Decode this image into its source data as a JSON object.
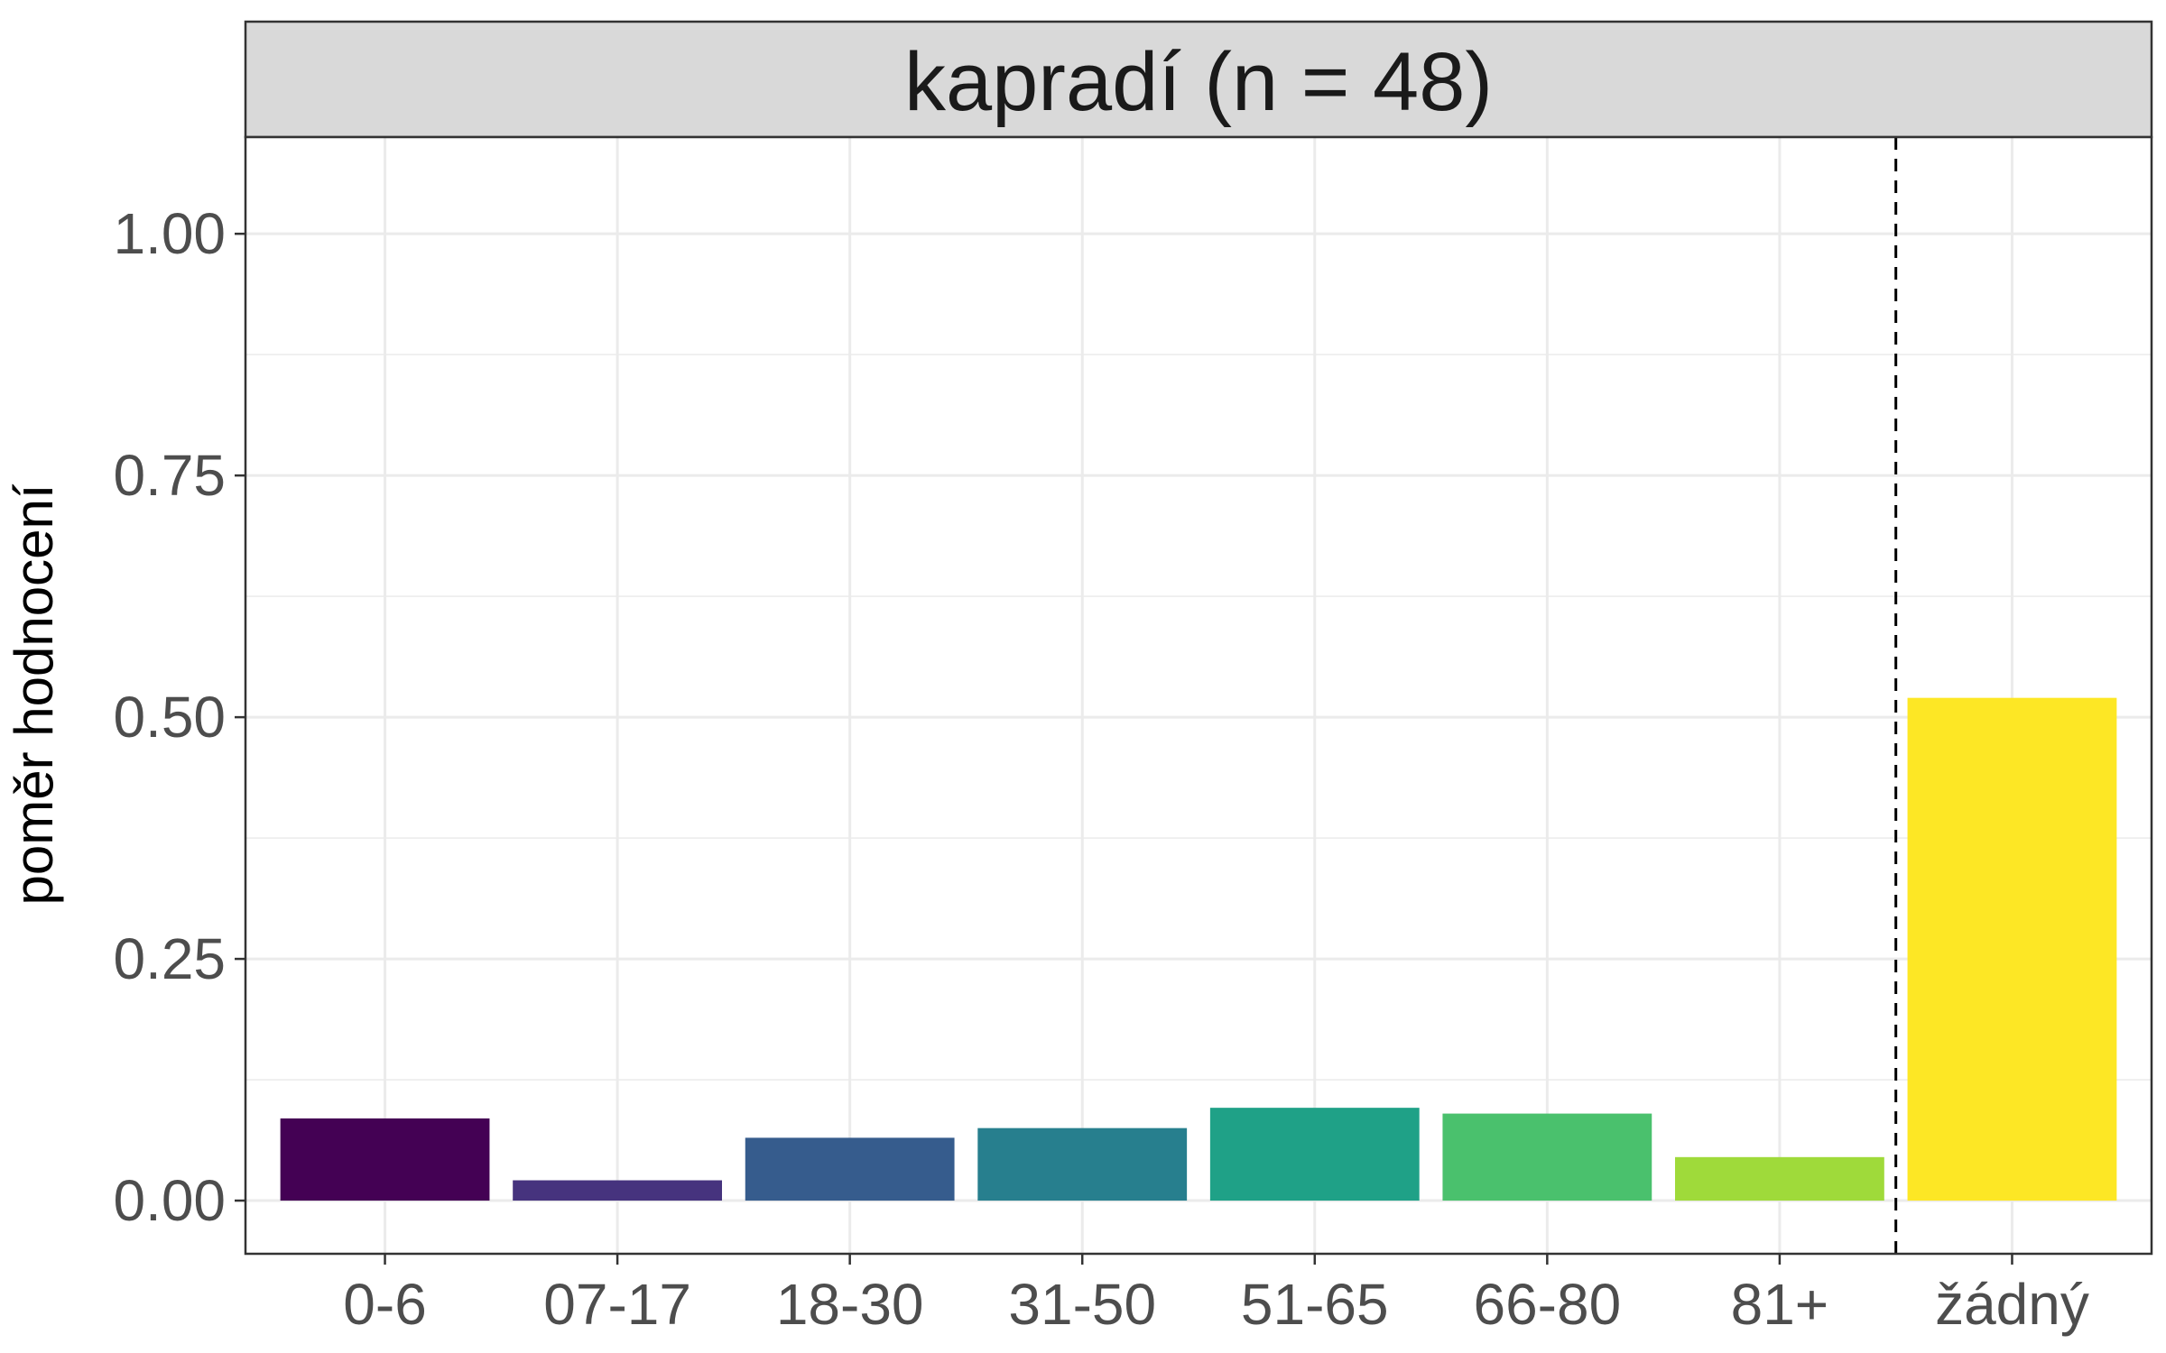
{
  "chart_data": {
    "type": "bar",
    "facet_title": "kapradí (n = 48)",
    "ylabel": "poměr hodnocení",
    "xlabel": "",
    "ylim": [
      0,
      1.1
    ],
    "y_ticks": [
      0.0,
      0.25,
      0.5,
      0.75,
      1.0
    ],
    "y_tick_labels": [
      "0.00",
      "0.25",
      "0.50",
      "0.75",
      "1.00"
    ],
    "categories": [
      "0-6",
      "07-17",
      "18-30",
      "31-50",
      "51-65",
      "66-80",
      "81+",
      "žádný"
    ],
    "values": [
      0.085,
      0.021,
      0.065,
      0.075,
      0.096,
      0.09,
      0.045,
      0.52
    ],
    "colors": [
      "#440154",
      "#46337E",
      "#365C8D",
      "#277F8E",
      "#1FA187",
      "#4AC16D",
      "#9FDA3A",
      "#FDE725"
    ],
    "reference_line_between": [
      "81+",
      "žádný"
    ],
    "grid": true,
    "legend": "none"
  }
}
